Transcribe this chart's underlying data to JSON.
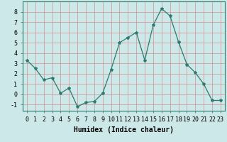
{
  "x": [
    0,
    1,
    2,
    3,
    4,
    5,
    6,
    7,
    8,
    9,
    10,
    11,
    12,
    13,
    14,
    15,
    16,
    17,
    18,
    19,
    20,
    21,
    22,
    23
  ],
  "y": [
    3.3,
    2.5,
    1.4,
    1.6,
    0.1,
    0.6,
    -1.2,
    -0.8,
    -0.7,
    0.1,
    2.4,
    5.0,
    5.5,
    6.0,
    3.3,
    6.7,
    8.3,
    7.6,
    5.1,
    2.9,
    2.1,
    1.0,
    -0.6,
    -0.6
  ],
  "line_color": "#2d7a6e",
  "marker": "*",
  "marker_size": 3,
  "bg_color": "#cce8e8",
  "grid_color": "#d09090",
  "xlabel": "Humidex (Indice chaleur)",
  "xlabel_fontsize": 7,
  "xlabel_fontweight": "bold",
  "tick_fontsize": 6,
  "ylim": [
    -1.6,
    9.0
  ],
  "yticks": [
    -1,
    0,
    1,
    2,
    3,
    4,
    5,
    6,
    7,
    8
  ],
  "xlim": [
    -0.5,
    23.5
  ],
  "xticks": [
    0,
    1,
    2,
    3,
    4,
    5,
    6,
    7,
    8,
    9,
    10,
    11,
    12,
    13,
    14,
    15,
    16,
    17,
    18,
    19,
    20,
    21,
    22,
    23
  ]
}
